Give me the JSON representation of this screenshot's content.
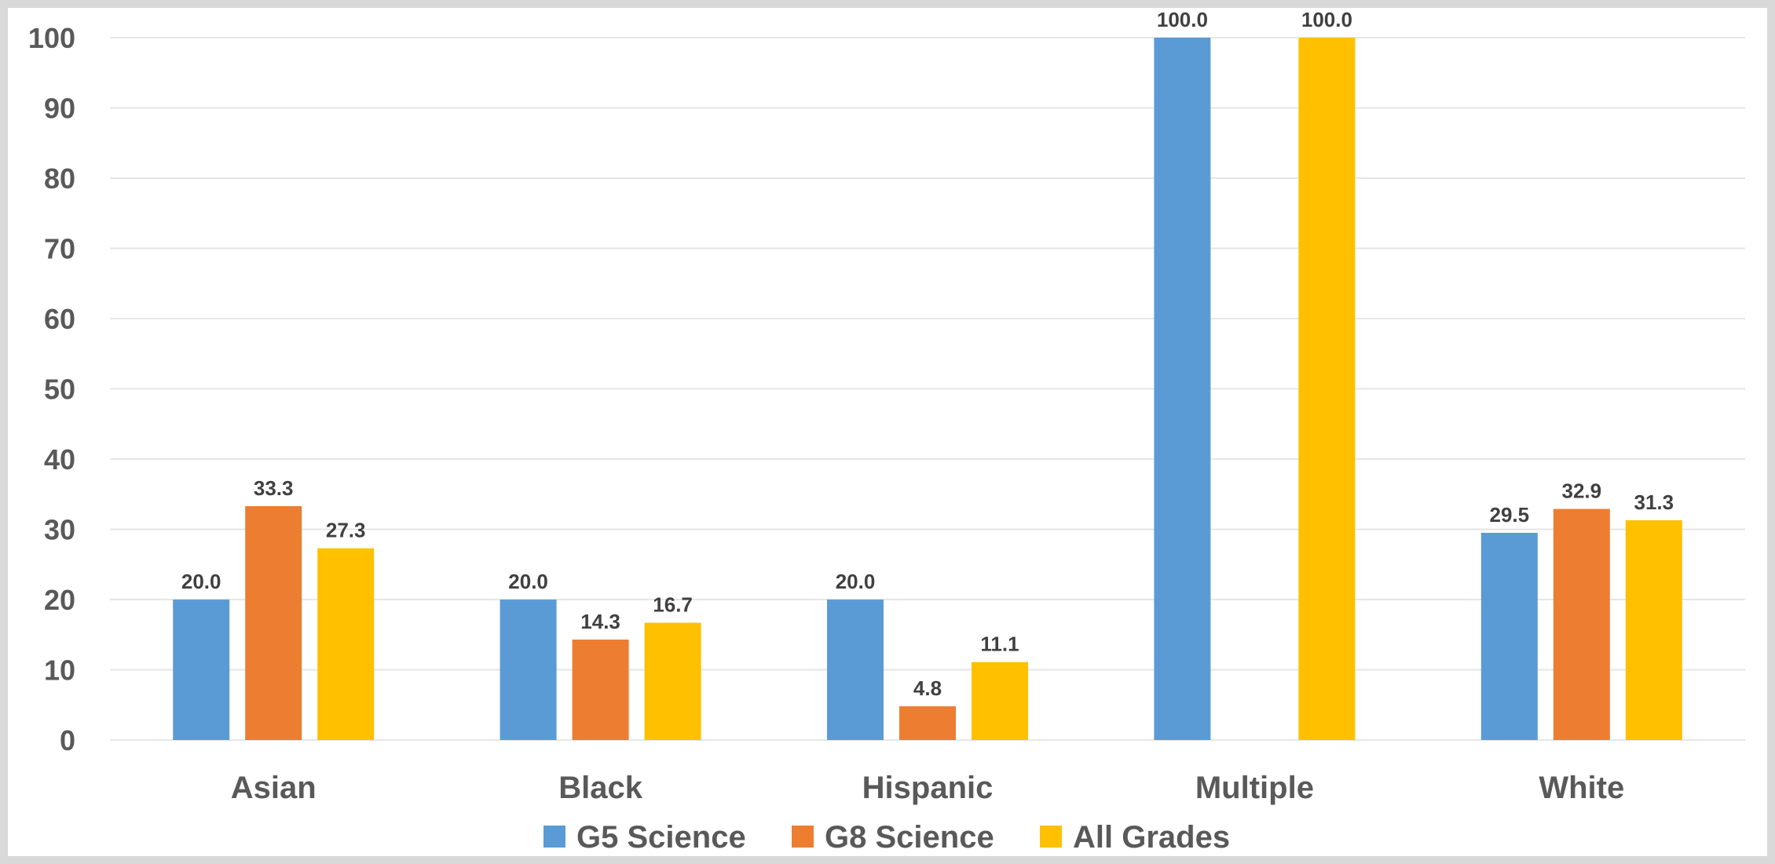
{
  "chart_data": {
    "type": "bar",
    "title": "",
    "xlabel": "",
    "ylabel": "",
    "ylim": [
      0,
      100
    ],
    "yticks": [
      "0",
      "10",
      "20",
      "30",
      "40",
      "50",
      "60",
      "70",
      "80",
      "90",
      "100"
    ],
    "grid": true,
    "legend_position": "bottom",
    "categories": [
      "Asian",
      "Black",
      "Hispanic",
      "Multiple",
      "White"
    ],
    "series": [
      {
        "name": "G5 Science",
        "color": "#5b9bd5",
        "values": [
          20.0,
          20.0,
          20.0,
          100.0,
          29.5
        ],
        "labels": [
          "20.0",
          "20.0",
          "20.0",
          "",
          "29.5"
        ]
      },
      {
        "name": "G8 Science",
        "color": "#ed7d31",
        "values": [
          33.3,
          14.3,
          4.8,
          null,
          32.9
        ],
        "labels": [
          "33.3",
          "14.3",
          "4.8",
          "",
          "32.9"
        ]
      },
      {
        "name": "All Grades",
        "color": "#ffc000",
        "values": [
          27.3,
          16.7,
          11.1,
          100.0,
          31.3
        ],
        "labels": [
          "27.3",
          "16.7",
          "11.1",
          "100.0",
          "31.3"
        ]
      }
    ],
    "top_labels": [
      "100.0",
      "100.0"
    ]
  }
}
